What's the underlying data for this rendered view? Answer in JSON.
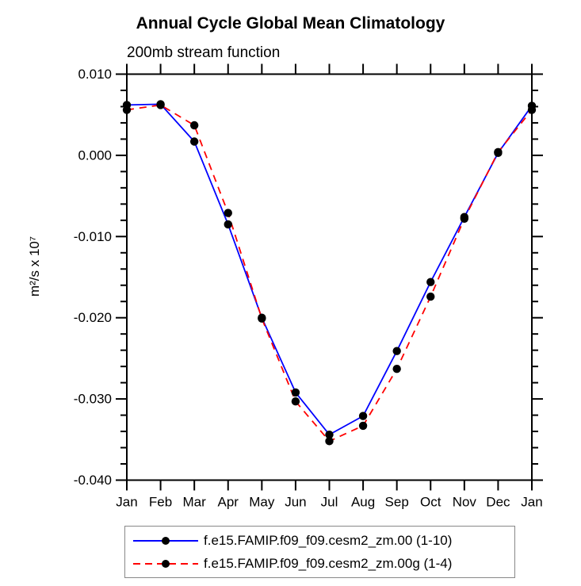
{
  "header": {
    "title": "Annual Cycle Global Mean Climatology",
    "subtitle": "200mb stream function"
  },
  "y_axis_unit": "m²/s x 10⁷",
  "chart_data": {
    "type": "line",
    "title": "Annual Cycle Global Mean Climatology",
    "subtitle": "200mb stream function",
    "xlabel": "",
    "ylabel": "m²/s x 10⁷",
    "categories": [
      "Jan",
      "Feb",
      "Mar",
      "Apr",
      "May",
      "Jun",
      "Jul",
      "Aug",
      "Sep",
      "Oct",
      "Nov",
      "Dec",
      "Jan"
    ],
    "ylim": [
      -0.04,
      0.01
    ],
    "ytick_values": [
      0.01,
      0.0,
      -0.01,
      -0.02,
      -0.03,
      -0.04
    ],
    "ytick_labels": [
      "0.010",
      "0.000",
      "-0.010",
      "-0.020",
      "-0.030",
      "-0.040"
    ],
    "minor_tick_step": 0.002,
    "grid": false,
    "legend_position": "bottom",
    "frame_color": "#000000",
    "series": [
      {
        "name": "f.e15.FAMIP.f09_f09.cesm2_zm.00 (1-10)",
        "color": "#0000ff",
        "style": "solid",
        "marker": "circle",
        "marker_color": "#000000",
        "values": [
          0.0062,
          0.0063,
          0.0017,
          -0.0085,
          -0.02,
          -0.0292,
          -0.0344,
          -0.0321,
          -0.0241,
          -0.0156,
          -0.0076,
          0.0003,
          0.0061
        ]
      },
      {
        "name": "f.e15.FAMIP.f09_f09.cesm2_zm.00g (1-4)",
        "color": "#ff0000",
        "style": "dashed",
        "marker": "circle",
        "marker_color": "#000000",
        "values": [
          0.0056,
          0.0062,
          0.0037,
          -0.0071,
          -0.0201,
          -0.0303,
          -0.0352,
          -0.0333,
          -0.0263,
          -0.0174,
          -0.0078,
          0.0004,
          0.0056
        ]
      }
    ]
  }
}
